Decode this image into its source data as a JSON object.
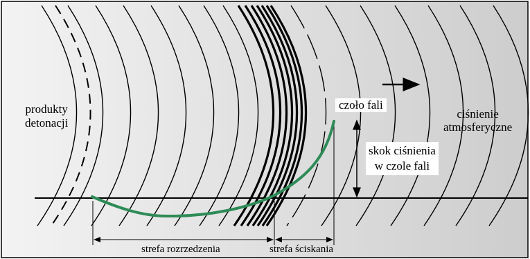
{
  "labels": {
    "products_line1": "produkty",
    "products_line2": "detonacji",
    "wave_front": "czoło fali",
    "ambient_line1": "ciśnienie",
    "ambient_line2": "atmosferyczne",
    "jump_line1": "skok ciśnienia",
    "jump_line2": "w czole fali",
    "rarefaction_zone": "strefa rozrzedzenia",
    "compression_zone": "strefa ściskania"
  },
  "colors": {
    "background_gradient": [
      "#f2f2f2",
      "#cfcfcf"
    ],
    "curve": "#2e8b57",
    "lines": "#000000"
  }
}
